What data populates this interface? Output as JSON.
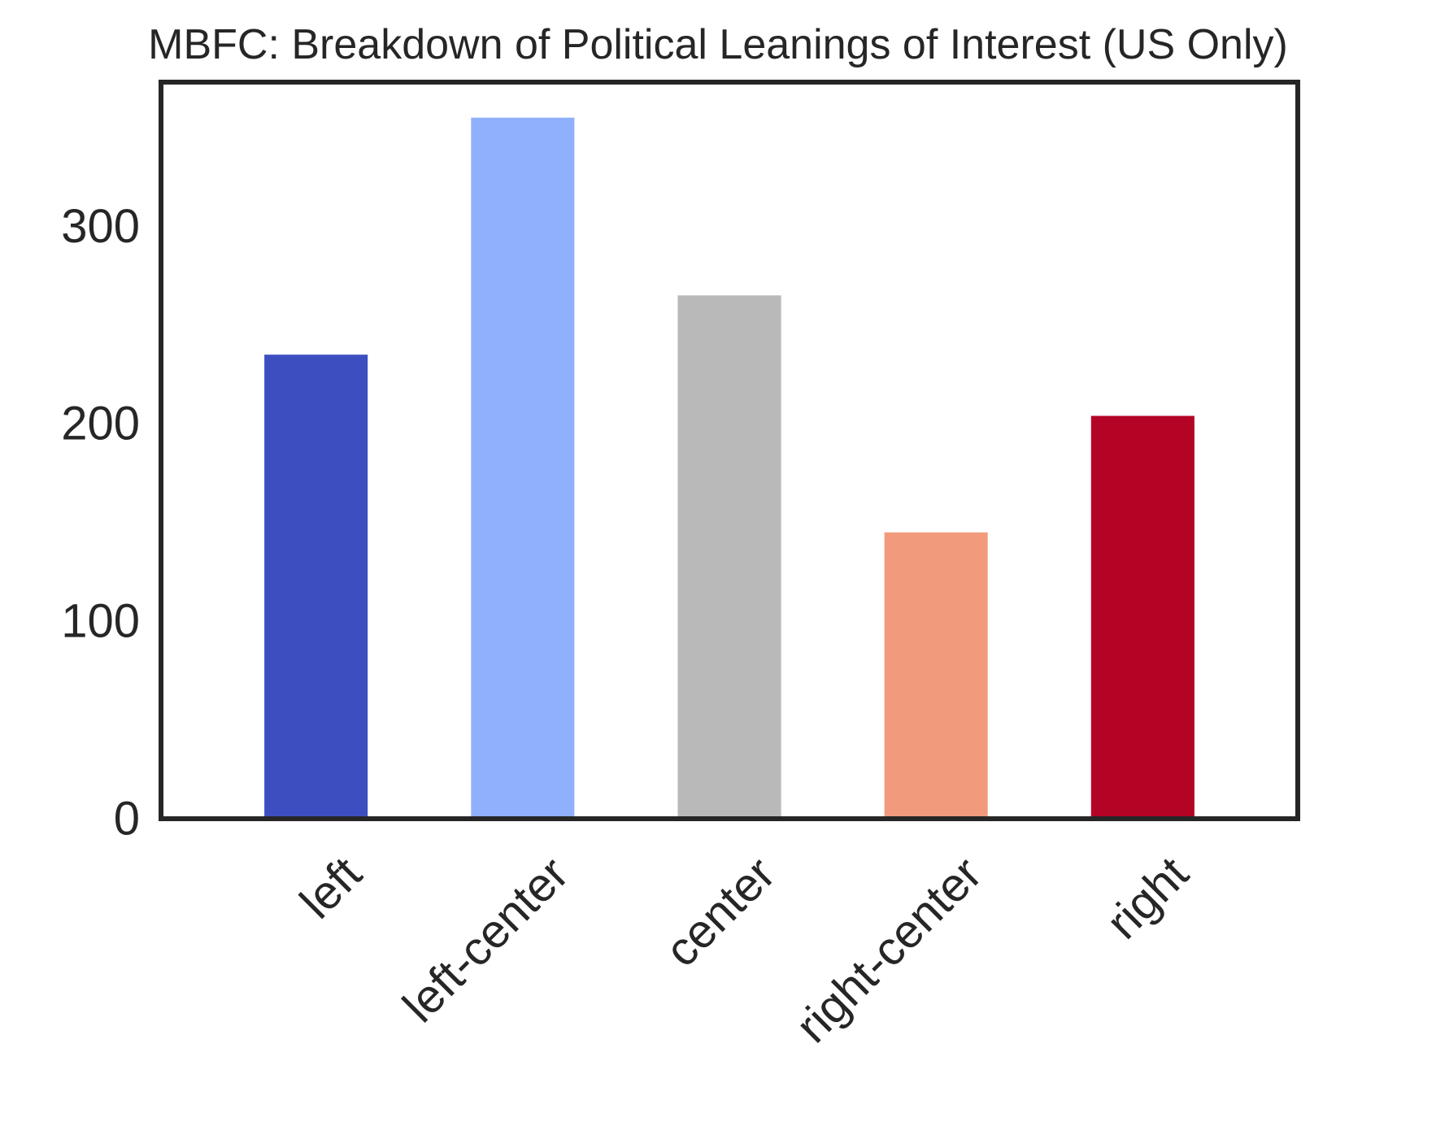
{
  "chart_data": {
    "type": "bar",
    "title": "MBFC: Breakdown of Political Leanings of Interest (US Only)",
    "xlabel": "",
    "ylabel": "",
    "categories": [
      "left",
      "left-center",
      "center",
      "right-center",
      "right"
    ],
    "values": [
      235,
      355,
      265,
      145,
      204
    ],
    "colors": [
      "#3d4fc0",
      "#8fb0fd",
      "#b9b9b9",
      "#f29a7c",
      "#b40426"
    ],
    "ylim": [
      0,
      373
    ],
    "yticks": [
      0,
      100,
      200,
      300
    ],
    "ytick_labels": [
      "0",
      "100",
      "200",
      "300"
    ],
    "grid": false,
    "legend": "none",
    "xtick_rotation": "45 degrees"
  }
}
